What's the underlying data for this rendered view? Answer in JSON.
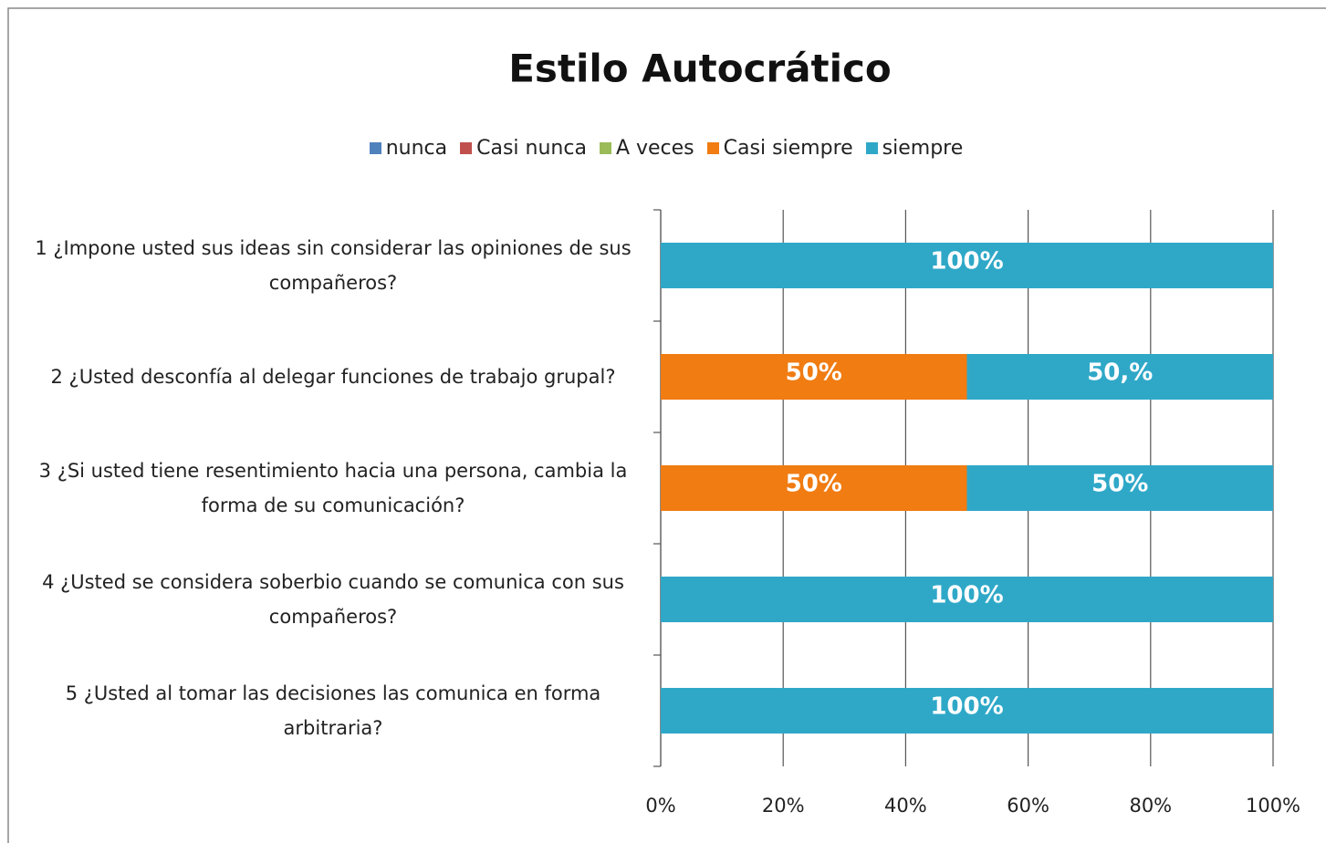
{
  "chart_data": {
    "type": "stacked_barh",
    "title": "Estilo Autocrático",
    "categories": [
      "1 ¿Impone usted sus ideas sin considerar las opiniones de sus compañeros?",
      "2 ¿Usted desconfía al delegar funciones de trabajo grupal?",
      "3 ¿Si usted tiene resentimiento hacia una persona, cambia la forma de su comunicación?",
      "4 ¿Usted se considera soberbio cuando se comunica con sus compañeros?",
      "5 ¿Usted al tomar las decisiones las comunica en forma arbitraria?"
    ],
    "series": [
      {
        "name": "nunca",
        "color": "#4f81bd",
        "values": [
          0,
          0,
          0,
          0,
          0
        ]
      },
      {
        "name": "Casi nunca",
        "color": "#c0504d",
        "values": [
          0,
          0,
          0,
          0,
          0
        ]
      },
      {
        "name": "A veces",
        "color": "#9bbb59",
        "values": [
          0,
          0,
          0,
          0,
          0
        ]
      },
      {
        "name": "Casi siempre",
        "color": "#f07c12",
        "values": [
          0,
          50,
          50,
          0,
          0
        ],
        "value_labels": [
          null,
          "50%",
          "50%",
          null,
          null
        ]
      },
      {
        "name": "siempre",
        "color": "#2fa8c8",
        "values": [
          100,
          50,
          50,
          100,
          100
        ],
        "value_labels": [
          "100%",
          "50,%",
          "50%",
          "100%",
          "100%"
        ]
      }
    ],
    "xlim": [
      0,
      100
    ],
    "xticks": [
      {
        "value": 0,
        "label": "0%"
      },
      {
        "value": 20,
        "label": "20%"
      },
      {
        "value": 40,
        "label": "40%"
      },
      {
        "value": 60,
        "label": "60%"
      },
      {
        "value": 80,
        "label": "80%"
      },
      {
        "value": 100,
        "label": "100%"
      }
    ],
    "grid": true,
    "legend": "top"
  }
}
